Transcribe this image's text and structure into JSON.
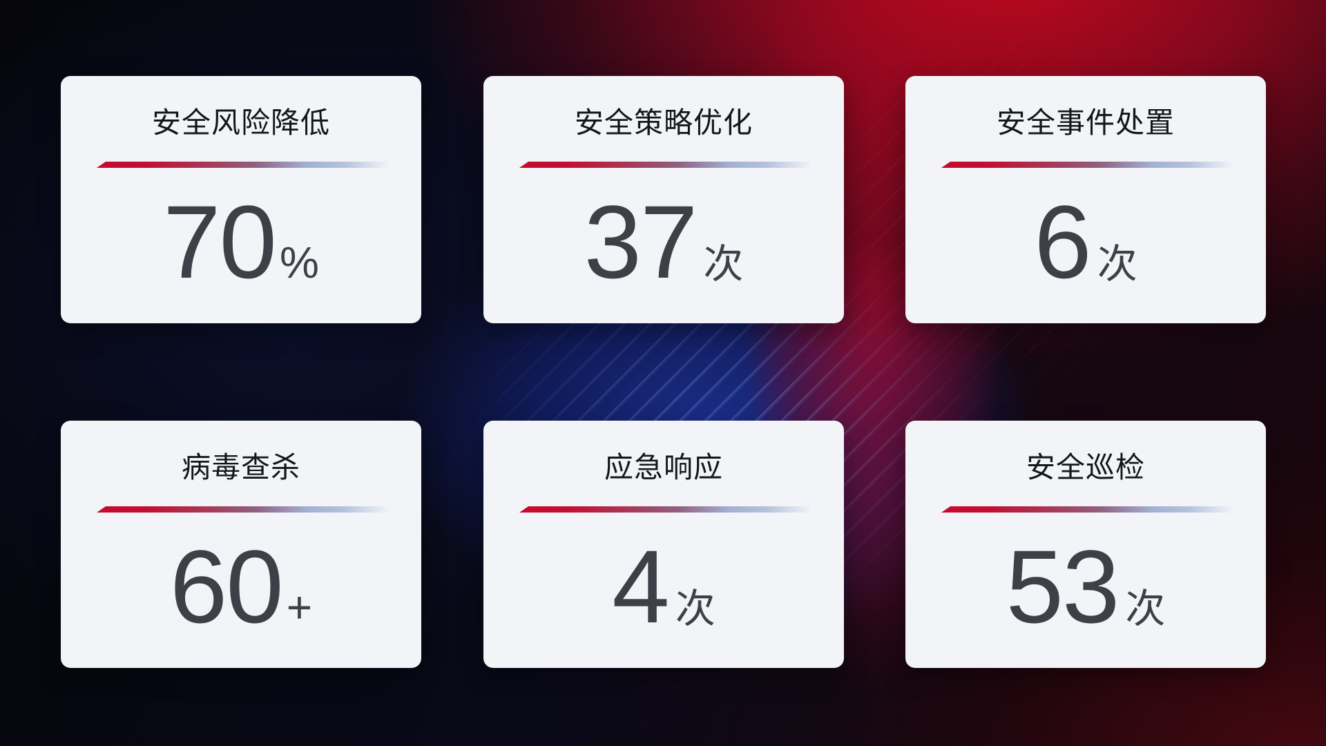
{
  "cards": [
    {
      "id": "risk-reduction",
      "title": "安全风险降低",
      "value": "70",
      "unit": "%"
    },
    {
      "id": "policy-optimization",
      "title": "安全策略优化",
      "value": "37",
      "unit": "次"
    },
    {
      "id": "incident-handling",
      "title": "安全事件处置",
      "value": "6",
      "unit": "次"
    },
    {
      "id": "virus-scan",
      "title": "病毒查杀",
      "value": "60",
      "unit": "+"
    },
    {
      "id": "emergency-response",
      "title": "应急响应",
      "value": "4",
      "unit": "次"
    },
    {
      "id": "security-inspection",
      "title": "安全巡检",
      "value": "53",
      "unit": "次"
    }
  ],
  "colors": {
    "card_background": "#f3f4f8",
    "title_text": "#15161a",
    "value_text": "#3d4046",
    "underline_start_red": "#c60b2e",
    "underline_end_blue": "#b3c1dc",
    "bg_red_glow": "#c6081f",
    "bg_blue_glow": "#1c2f8f",
    "bg_base_dark": "#07070f"
  }
}
